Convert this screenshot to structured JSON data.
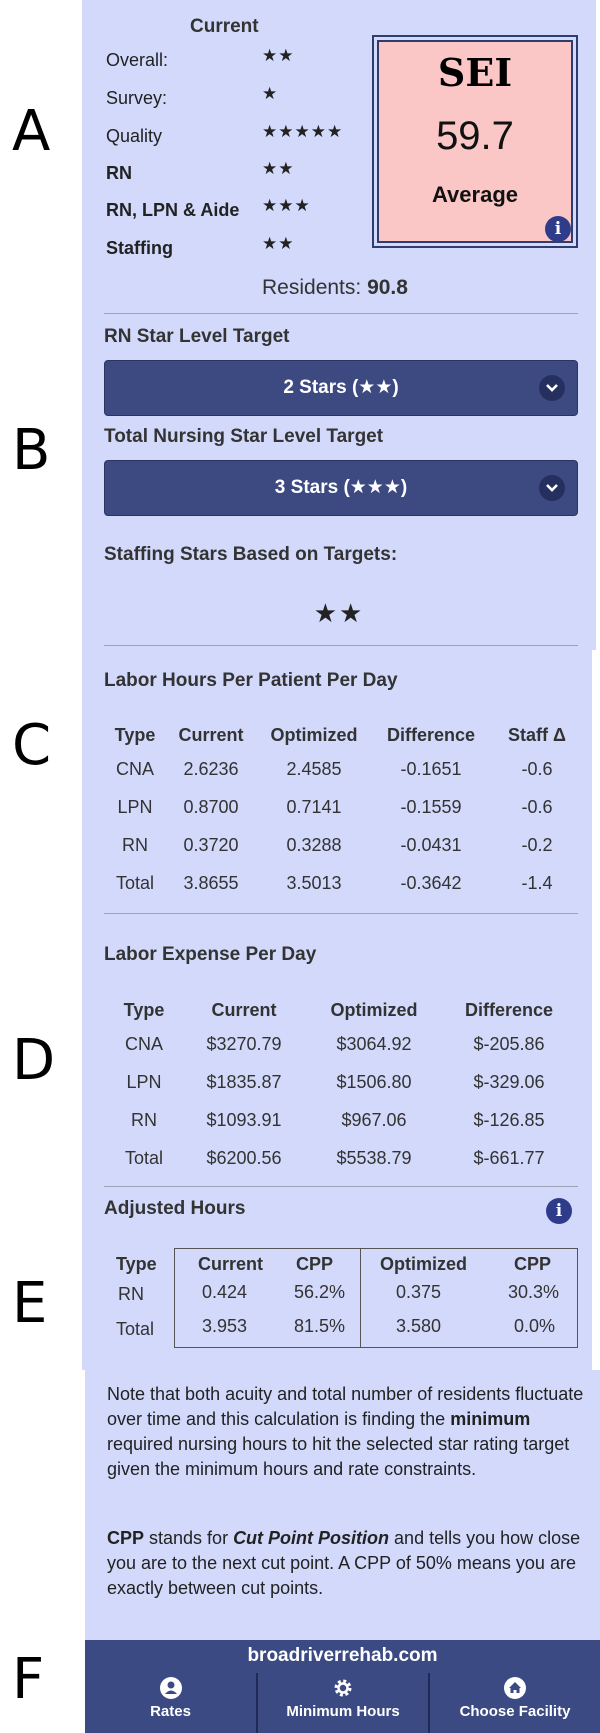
{
  "section_letters": [
    "A",
    "B",
    "C",
    "D",
    "E",
    "F"
  ],
  "stars": {
    "header": "Current",
    "rows": [
      {
        "label": "Overall:",
        "stars": "★★",
        "bold": false
      },
      {
        "label": "Survey:",
        "stars": "★",
        "bold": false
      },
      {
        "label": "Quality",
        "stars": "★★★★★",
        "bold": false
      },
      {
        "label": "RN",
        "stars": "★★",
        "bold": true
      },
      {
        "label": "RN, LPN & Aide",
        "stars": "★★★",
        "bold": true
      },
      {
        "label": "Staffing",
        "stars": "★★",
        "bold": true
      }
    ],
    "residents_label": "Residents:",
    "residents_value": "90.8"
  },
  "sei": {
    "title": "SEI",
    "value": "59.7",
    "category": "Average",
    "info_icon": "i"
  },
  "targets": {
    "rn_label": "RN Star Level Target",
    "rn_value": "2 Stars (★★)",
    "total_label": "Total Nursing Star Level Target",
    "total_value": "3 Stars (★★★)",
    "based_label": "Staffing Stars Based on Targets:",
    "based_stars": "★★"
  },
  "labor_hours": {
    "title": "Labor Hours Per Patient Per Day",
    "headers": [
      "Type",
      "Current",
      "Optimized",
      "Difference",
      "Staff Δ"
    ],
    "rows": [
      [
        "CNA",
        "2.6236",
        "2.4585",
        "-0.1651",
        "-0.6"
      ],
      [
        "LPN",
        "0.8700",
        "0.7141",
        "-0.1559",
        "-0.6"
      ],
      [
        "RN",
        "0.3720",
        "0.3288",
        "-0.0431",
        "-0.2"
      ],
      [
        "Total",
        "3.8655",
        "3.5013",
        "-0.3642",
        "-1.4"
      ]
    ]
  },
  "labor_expense": {
    "title": "Labor Expense Per Day",
    "headers": [
      "Type",
      "Current",
      "Optimized",
      "Difference"
    ],
    "rows": [
      [
        "CNA",
        "$3270.79",
        "$3064.92",
        "$-205.86"
      ],
      [
        "LPN",
        "$1835.87",
        "$1506.80",
        "$-329.06"
      ],
      [
        "RN",
        "$1093.91",
        "$967.06",
        "$-126.85"
      ],
      [
        "Total",
        "$6200.56",
        "$5538.79",
        "$-661.77"
      ]
    ]
  },
  "adjusted": {
    "title": "Adjusted Hours",
    "headers": [
      "Type",
      "Current",
      "CPP",
      "Optimized",
      "CPP"
    ],
    "rows": [
      [
        "RN",
        "0.424",
        "56.2%",
        "0.375",
        "30.3%"
      ],
      [
        "Total",
        "3.953",
        "81.5%",
        "3.580",
        "0.0%"
      ]
    ]
  },
  "note": {
    "p1_a": "Note that both acuity and total number of residents fluctuate over time and this calculation is finding the ",
    "p1_bold": "minimum",
    "p1_b": " required nursing hours to hit the selected star rating target given the minimum hours and rate constraints.",
    "p2_bold": "CPP",
    "p2_a": " stands for ",
    "p2_em": "Cut Point Position",
    "p2_b": " and tells you how close you are to the next cut point. A CPP of 50% means you are exactly between cut points."
  },
  "footer": {
    "site": "broadriverrehab.com",
    "nav": [
      {
        "label": "Rates",
        "icon": "person-icon"
      },
      {
        "label": "Minimum Hours",
        "icon": "gear-icon"
      },
      {
        "label": "Choose Facility",
        "icon": "home-icon"
      }
    ]
  },
  "colors": {
    "panel": "#d2d9fb",
    "button": "#3d4a82",
    "sei_box": "#fbc6c6",
    "footer": "#3b4a82"
  }
}
